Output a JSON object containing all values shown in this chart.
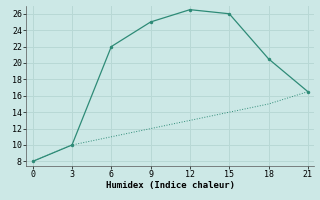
{
  "xlabel": "Humidex (Indice chaleur)",
  "line1_x": [
    0,
    3,
    6,
    9,
    12,
    15,
    18,
    21
  ],
  "line1_y": [
    8,
    10,
    22,
    25,
    26.5,
    26,
    20.5,
    16.5
  ],
  "line2_x": [
    0,
    3,
    6,
    9,
    12,
    15,
    18,
    21
  ],
  "line2_y": [
    8,
    10,
    11,
    12,
    13,
    14,
    15,
    16.5
  ],
  "line_color": "#2e8b77",
  "bg_color": "#cce8e6",
  "grid_color": "#b8d8d5",
  "xlim": [
    -0.5,
    21.5
  ],
  "ylim": [
    7.5,
    27
  ],
  "xticks": [
    0,
    3,
    6,
    9,
    12,
    15,
    18,
    21
  ],
  "yticks": [
    8,
    10,
    12,
    14,
    16,
    18,
    20,
    22,
    24,
    26
  ]
}
